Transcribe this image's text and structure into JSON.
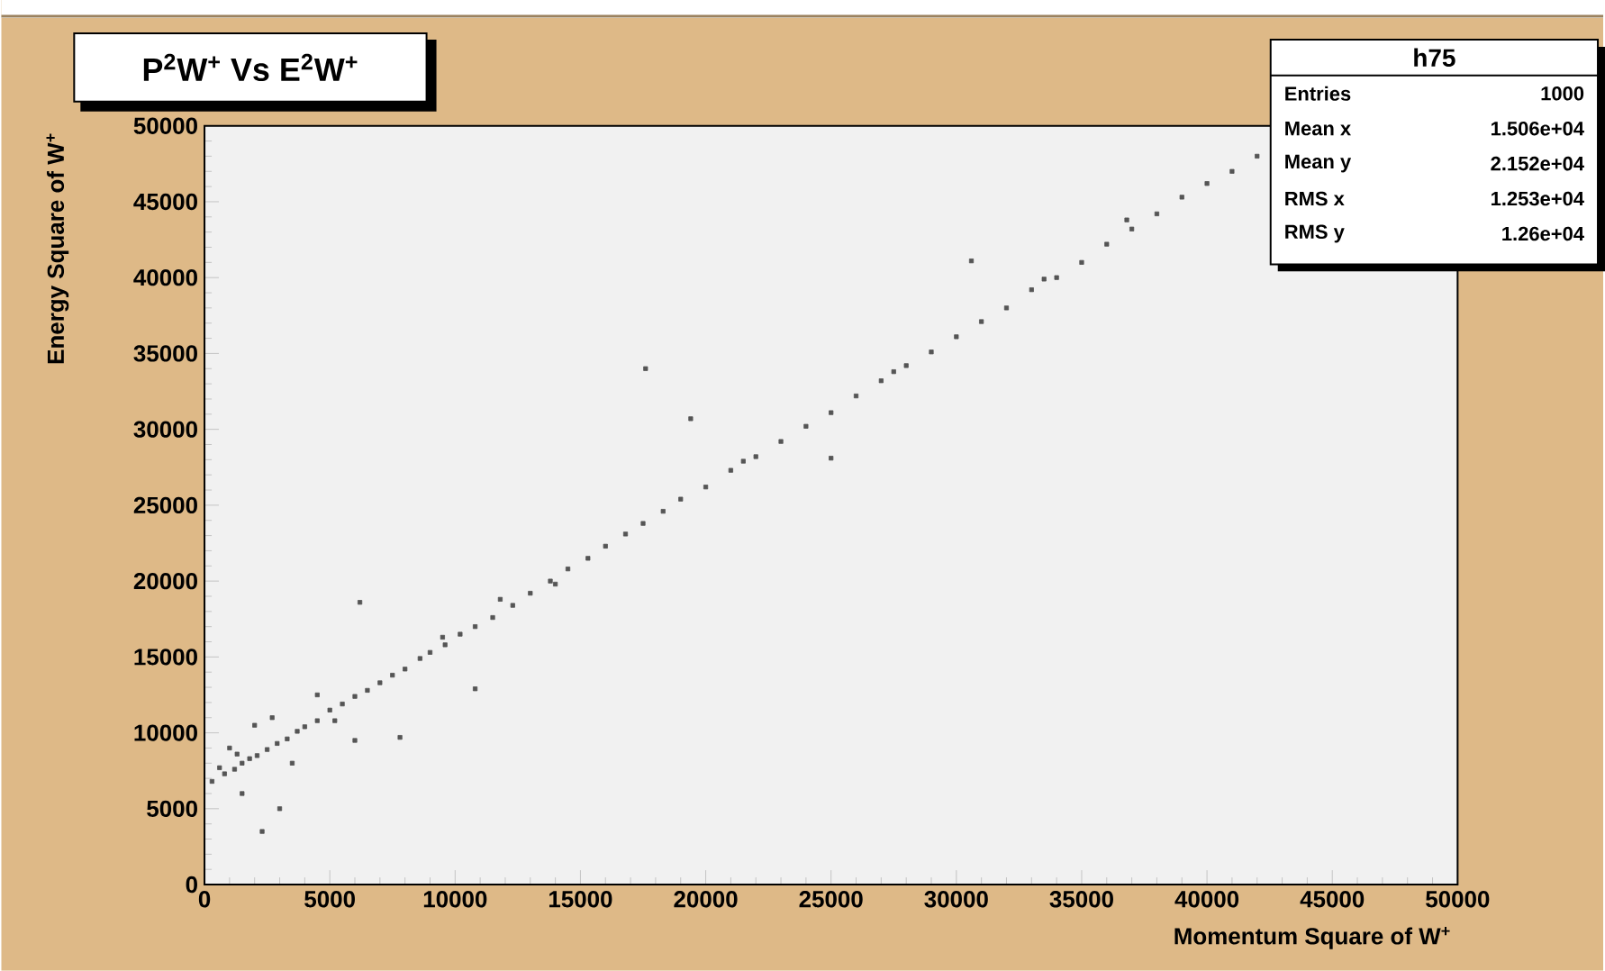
{
  "chart_data": {
    "type": "scatter",
    "title": "P$^{2}$W$^{+}$ Vs E$^{2}$W$^{+}$",
    "xlabel": "Momentum Square of W$^{+}$",
    "ylabel": "Energy Square of W$^{+}$",
    "annotations": [
      "h75",
      "Entries",
      "1000",
      "Mean x",
      "1.506e+04",
      "Mean y",
      "2.152e+04",
      "RMS x",
      "1.253e+04",
      "RMS y",
      "1.26e+04"
    ],
    "xlim": [
      0,
      50000
    ],
    "ylim": [
      0,
      50000
    ],
    "xticks": [
      0,
      5000,
      10000,
      15000,
      20000,
      25000,
      30000,
      35000,
      40000,
      45000,
      50000
    ],
    "yticks": [
      0,
      5000,
      10000,
      15000,
      20000,
      25000,
      30000,
      35000,
      40000,
      45000,
      50000
    ],
    "marker": "square",
    "series": [
      {
        "color": "#555555",
        "x": [
          300,
          800,
          1200,
          1500,
          1800,
          2100,
          2500,
          2900,
          3300,
          3700,
          4000,
          4500,
          5000,
          5500,
          6000,
          6500,
          7000,
          7500,
          8000,
          8600,
          9000,
          9600,
          10200,
          10800,
          11500,
          12300,
          13000,
          13800,
          14500,
          15300,
          16000,
          16800,
          17500,
          18300,
          19000,
          20000,
          21000,
          22000,
          23000,
          24000,
          25000,
          26000,
          27000,
          28000,
          29000,
          30000,
          31000,
          32000,
          33000,
          34000,
          35000,
          36000,
          37000,
          38000,
          39000,
          40000,
          41000,
          42000,
          1000,
          1500,
          2000,
          3000,
          3500,
          4500,
          6000,
          2300,
          2700,
          17600,
          19400,
          11800,
          6200,
          30600,
          25000,
          10800,
          7800,
          600,
          1300,
          5200,
          9500,
          14000,
          21500,
          27500,
          33500,
          36800
        ],
        "values": [
          6800,
          7300,
          7600,
          8000,
          8300,
          8500,
          8900,
          9300,
          9600,
          10100,
          10400,
          10800,
          11500,
          11900,
          12400,
          12800,
          13300,
          13800,
          14200,
          14900,
          15300,
          15800,
          16500,
          17000,
          17600,
          18400,
          19200,
          20000,
          20800,
          21500,
          22300,
          23100,
          23800,
          24600,
          25400,
          26200,
          27300,
          28200,
          29200,
          30200,
          31100,
          32200,
          33200,
          34200,
          35100,
          36100,
          37100,
          38000,
          39200,
          40000,
          41000,
          42200,
          43200,
          44200,
          45300,
          46200,
          47000,
          48000,
          9000,
          6000,
          10500,
          5000,
          8000,
          12500,
          9500,
          3500,
          11000,
          34000,
          30700,
          18800,
          18600,
          41100,
          28100,
          12900,
          9700,
          7700,
          8600,
          10800,
          16300,
          19800,
          27900,
          33800,
          39900,
          43800
        ]
      }
    ]
  }
}
